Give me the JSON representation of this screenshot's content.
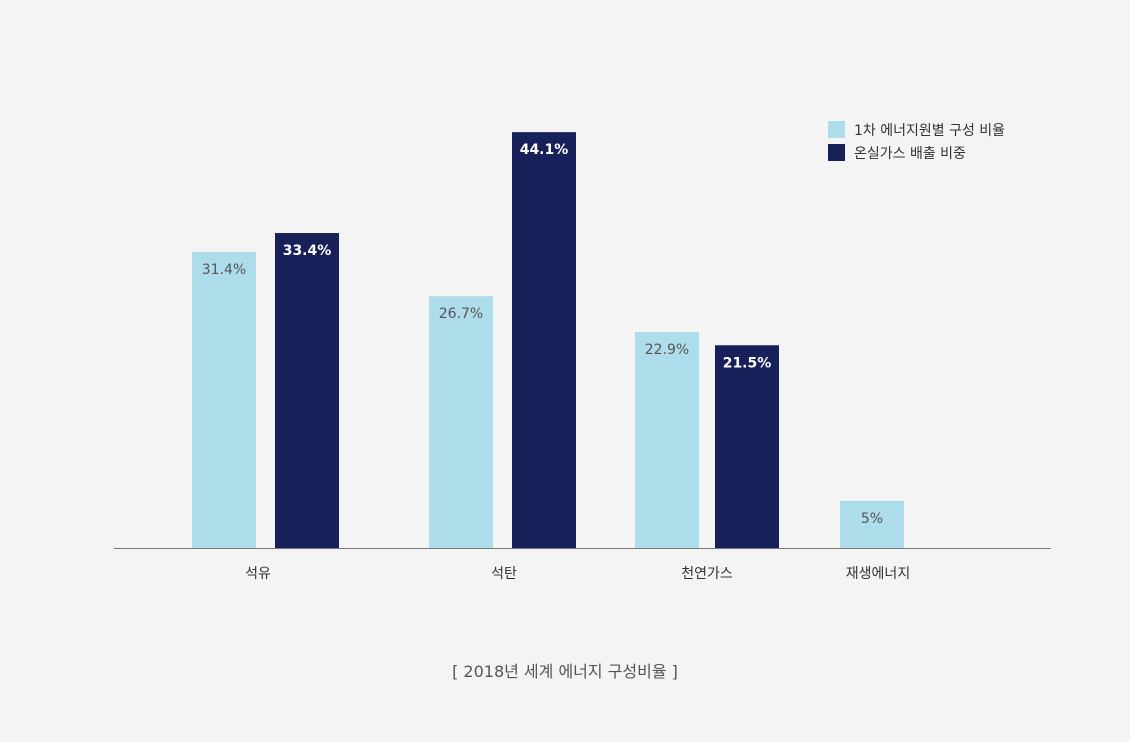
{
  "chart_data": {
    "type": "bar",
    "categories": [
      "석유",
      "석탄",
      "천연가스",
      "재생에너지"
    ],
    "series": [
      {
        "name": "1차 에너지원별 구성 비율",
        "values": [
          31.4,
          26.7,
          22.9,
          5
        ],
        "labels": [
          "31.4%",
          "26.7%",
          "22.9%",
          "5%"
        ],
        "color": "#addcea"
      },
      {
        "name": "온실가스 배출 비중",
        "values": [
          33.4,
          44.1,
          21.5,
          null
        ],
        "labels": [
          "33.4%",
          "44.1%",
          "21.5%",
          ""
        ],
        "color": "#18205a"
      }
    ],
    "legend_position": "top-right",
    "grid": false,
    "caption": "[ 2018년 세계 에너지 구성비율 ]"
  },
  "colors": {
    "background": "#f4f4f4",
    "axis": "#777777",
    "light_label": "#555555",
    "dark_label": "#ffffff"
  }
}
